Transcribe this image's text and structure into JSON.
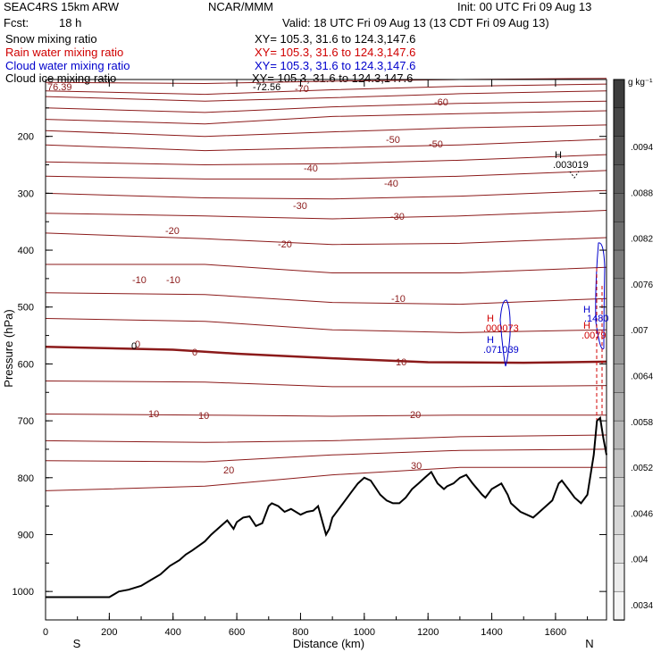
{
  "header": {
    "model": "SEAC4RS 15km ARW",
    "agency": "NCAR/MMM",
    "init": "Init: 00 UTC Fri 09 Aug 13",
    "fcst_label": "Fcst:",
    "fcst_value": "18 h",
    "valid": "Valid: 18 UTC Fri 09 Aug 13 (13 CDT Fri 09 Aug 13)"
  },
  "fields": [
    {
      "name": "Snow mixing ratio",
      "xy": "XY= 105.3, 31.6 to 124.3,147.6",
      "color": "#000000"
    },
    {
      "name": "Rain water mixing ratio",
      "xy": "XY= 105.3, 31.6 to 124.3,147.6",
      "color": "#d00000"
    },
    {
      "name": "Cloud water mixing ratio",
      "xy": "XY= 105.3, 31.6 to 124.3,147.6",
      "color": "#0000cc"
    },
    {
      "name": "Cloud ice mixing ratio",
      "xy": "XY= 105.3, 31.6 to 124.3,147.6",
      "color": "#000000"
    }
  ],
  "chart_data": {
    "type": "line",
    "xlabel": "Distance (km)",
    "ylabel": "Pressure (hPa)",
    "xlim": [
      0,
      1760
    ],
    "ylim": [
      1050,
      100
    ],
    "x_ticks": [
      "0",
      "200",
      "400",
      "600",
      "800",
      "1000",
      "1200",
      "1400",
      "1600"
    ],
    "y_ticks": [
      "200",
      "300",
      "400",
      "500",
      "600",
      "700",
      "800",
      "900",
      "1000"
    ],
    "left_end_label": "S",
    "right_end_label": "N",
    "colorbar_unit": "g kg⁻¹",
    "colorbar_ticks": [
      ".0094",
      ".0088",
      ".0082",
      ".0076",
      ".007",
      ".0064",
      ".0058",
      ".0052",
      ".0046",
      ".004",
      ".0034"
    ],
    "temperature_contour_labels": [
      "-70",
      "-60",
      "-50",
      "-50",
      "-40",
      "-40",
      "-30",
      "-30",
      "-20",
      "-20",
      "-10",
      "-10",
      "-10",
      "0",
      "0",
      "10",
      "10",
      "10",
      "20",
      "20",
      "30"
    ],
    "freezing_level_label": "0",
    "annotations": [
      {
        "text": "76.39",
        "color": "#8b1a1a"
      },
      {
        "text": "-72.56",
        "color": "#000000"
      },
      {
        "marker": "H",
        "text": ".003019",
        "color": "#000000"
      },
      {
        "marker": "H",
        "text": ".000073",
        "color": "#d00000"
      },
      {
        "marker": "H",
        "text": ".071039",
        "color": "#0000cc"
      },
      {
        "marker": "H",
        "text": ".1480",
        "color": "#0000cc"
      },
      {
        "marker": "H",
        "text": ".0079",
        "color": "#d00000"
      }
    ],
    "series": [
      {
        "name": "Terrain",
        "color": "#000000",
        "x": [
          0,
          100,
          200,
          230,
          260,
          300,
          330,
          360,
          390,
          420,
          440,
          460,
          480,
          500,
          520,
          550,
          570,
          590,
          600,
          620,
          640,
          660,
          680,
          700,
          710,
          730,
          750,
          770,
          800,
          820,
          840,
          855,
          860,
          870,
          880,
          890,
          900,
          920,
          940,
          960,
          980,
          1000,
          1020,
          1050,
          1070,
          1090,
          1110,
          1130,
          1150,
          1170,
          1190,
          1210,
          1230,
          1250,
          1260,
          1280,
          1300,
          1320,
          1340,
          1370,
          1380,
          1400,
          1430,
          1450,
          1460,
          1490,
          1510,
          1530,
          1550,
          1570,
          1590,
          1610,
          1620,
          1640,
          1660,
          1680,
          1700,
          1720,
          1730,
          1740,
          1750,
          1760
        ],
        "y": [
          1010,
          1010,
          1010,
          1000,
          997,
          990,
          980,
          970,
          955,
          945,
          935,
          928,
          920,
          912,
          900,
          885,
          875,
          890,
          878,
          870,
          868,
          885,
          880,
          850,
          845,
          850,
          860,
          855,
          865,
          860,
          858,
          850,
          860,
          880,
          900,
          890,
          870,
          855,
          840,
          825,
          810,
          800,
          805,
          830,
          840,
          845,
          845,
          835,
          820,
          810,
          800,
          790,
          810,
          820,
          815,
          810,
          800,
          795,
          810,
          830,
          835,
          820,
          810,
          830,
          845,
          860,
          865,
          870,
          860,
          850,
          840,
          810,
          805,
          820,
          835,
          845,
          830,
          760,
          700,
          695,
          730,
          760
        ]
      },
      {
        "name": "-70",
        "color": "#8b1a1a",
        "x": [
          0,
          500,
          900,
          1300,
          1760
        ],
        "y": [
          105,
          107,
          103,
          100,
          98
        ]
      },
      {
        "name": "-60",
        "color": "#8b1a1a",
        "x": [
          0,
          500,
          900,
          1300,
          1760
        ],
        "y": [
          130,
          138,
          132,
          125,
          120
        ]
      },
      {
        "name": "-50",
        "color": "#8b1a1a",
        "x": [
          0,
          500,
          900,
          1300,
          1760
        ],
        "y": [
          170,
          178,
          165,
          160,
          155
        ]
      },
      {
        "name": "-40",
        "color": "#8b1a1a",
        "x": [
          0,
          500,
          900,
          1300,
          1760
        ],
        "y": [
          215,
          225,
          220,
          215,
          205
        ]
      },
      {
        "name": "-30",
        "color": "#8b1a1a",
        "x": [
          0,
          500,
          900,
          1300,
          1760
        ],
        "y": [
          270,
          275,
          275,
          270,
          260
        ]
      },
      {
        "name": "-20",
        "color": "#8b1a1a",
        "x": [
          0,
          500,
          900,
          1300,
          1760
        ],
        "y": [
          335,
          340,
          345,
          340,
          330
        ]
      },
      {
        "name": "-10",
        "color": "#8b1a1a",
        "x": [
          0,
          500,
          900,
          1300,
          1760
        ],
        "y": [
          425,
          425,
          440,
          440,
          430
        ]
      },
      {
        "name": "0",
        "color": "#8b1a1a",
        "x": [
          0,
          400,
          600,
          900,
          1200,
          1500,
          1760
        ],
        "y": [
          570,
          575,
          582,
          590,
          597,
          598,
          596
        ]
      },
      {
        "name": "10",
        "color": "#8b1a1a",
        "x": [
          0,
          500,
          900,
          1300,
          1760
        ],
        "y": [
          688,
          690,
          692,
          690,
          690
        ]
      },
      {
        "name": "20",
        "color": "#8b1a1a",
        "x": [
          0,
          500,
          900,
          1300,
          1760
        ],
        "y": [
          823,
          815,
          795,
          782,
          782
        ]
      }
    ]
  }
}
